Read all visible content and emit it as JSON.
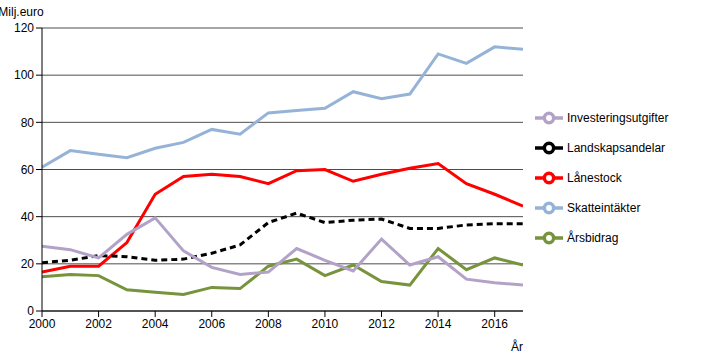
{
  "chart_data": {
    "type": "line",
    "y_label": "Milj.euro",
    "x_label": "År",
    "x": [
      2000,
      2001,
      2002,
      2003,
      2004,
      2005,
      2006,
      2007,
      2008,
      2009,
      2010,
      2011,
      2012,
      2013,
      2014,
      2015,
      2016,
      2017
    ],
    "xlim": [
      2000,
      2017
    ],
    "xticks": [
      2000,
      2002,
      2004,
      2006,
      2008,
      2010,
      2012,
      2014,
      2016
    ],
    "ylim": [
      0,
      120
    ],
    "yticks": [
      0,
      20,
      40,
      60,
      80,
      100,
      120
    ],
    "grid": true,
    "legend": "right",
    "series": [
      {
        "name": "Skatteintäkter",
        "color": "#95b3d7",
        "line_style": "solid",
        "values": [
          61,
          68,
          66.5,
          65,
          69,
          71.5,
          77,
          75,
          84,
          85,
          86,
          93,
          90,
          92,
          109,
          105,
          112,
          111
        ]
      },
      {
        "name": "Lånestock",
        "color": "#ff0000",
        "line_style": "solid",
        "values": [
          16.5,
          19,
          19,
          29,
          49.5,
          57,
          58,
          57,
          54,
          59.5,
          60,
          55,
          58,
          60.5,
          62.5,
          54,
          49.5,
          44.5
        ]
      },
      {
        "name": "Landskapsandelar",
        "color": "#000000",
        "line_style": "dashed",
        "values": [
          20.5,
          21.5,
          23.5,
          23,
          21.5,
          22,
          24.5,
          28,
          37.5,
          41.5,
          37.5,
          38.5,
          39,
          35,
          35,
          36.5,
          37,
          37
        ]
      },
      {
        "name": "Årsbidrag",
        "color": "#77933c",
        "line_style": "solid",
        "values": [
          14.5,
          15.5,
          15,
          9,
          8,
          7,
          10,
          9.5,
          19,
          22,
          15,
          19.5,
          12.5,
          11,
          26.5,
          17.5,
          22.5,
          19.5
        ]
      },
      {
        "name": "Investeringsutgifter",
        "color": "#b3a2c7",
        "line_style": "solid",
        "values": [
          27.5,
          26,
          22.5,
          32.5,
          39.5,
          25.5,
          18.5,
          15.5,
          16.5,
          26.5,
          21.5,
          17,
          30.5,
          19.5,
          23,
          13.5,
          12,
          11
        ]
      }
    ]
  }
}
